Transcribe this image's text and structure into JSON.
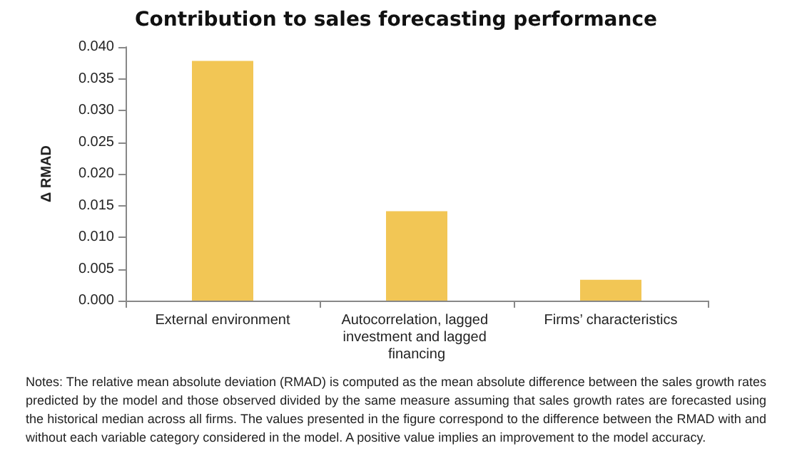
{
  "chart_data": {
    "type": "bar",
    "title": "Contribution to sales forecasting performance",
    "ylabel": "Δ RMAD",
    "categories": [
      "External environment",
      "Autocorrelation, lagged investment and lagged financing",
      "Firms’ characteristics"
    ],
    "values": [
      0.0378,
      0.0141,
      0.0033
    ],
    "color": "#f2c655",
    "ylim": [
      0,
      0.04
    ],
    "yticks": [
      {
        "value": 0,
        "label": "0.000"
      },
      {
        "value": 0.005,
        "label": "0.005"
      },
      {
        "value": 0.01,
        "label": "0.010"
      },
      {
        "value": 0.015,
        "label": "0.015"
      },
      {
        "value": 0.02,
        "label": "0.020"
      },
      {
        "value": 0.025,
        "label": "0.025"
      },
      {
        "value": 0.03,
        "label": "0.030"
      },
      {
        "value": 0.035,
        "label": "0.035"
      },
      {
        "value": 0.04,
        "label": "0.040"
      }
    ],
    "grid": false,
    "annotations": [
      "Notes: The relative mean absolute deviation (RMAD) is computed as the mean absolute difference between the sales growth rates predicted by the model and those observed divided by the same measure assuming that sales growth rates are forecasted using the historical median across all firms. The values presented in the figure correspond to the difference between the RMAD with and without each variable category considered in the model. A positive value implies an improvement to the model accuracy."
    ]
  }
}
